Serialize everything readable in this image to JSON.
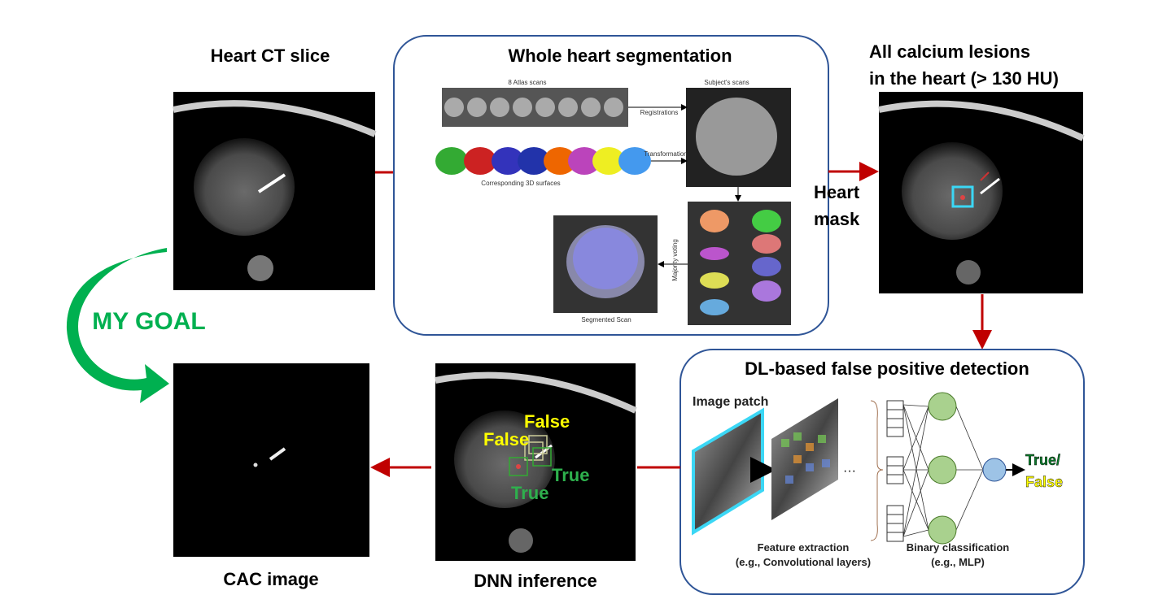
{
  "heart_ct": {
    "title": "Heart CT slice"
  },
  "segmentation": {
    "title": "Whole heart segmentation",
    "atlas_label": "8 Atlas scans",
    "subject_label": "Subject's scans",
    "registrations": "Registrations",
    "transformation": "Transformation",
    "surfaces_label": "Corresponding 3D surfaces",
    "majority_voting": "Majority voting",
    "segmented_label": "Segmented Scan"
  },
  "calcium": {
    "title_lines": [
      "All calcium lesions",
      "in the heart (> 130 HU)"
    ],
    "mask_label_lines": [
      "Heart",
      "mask"
    ]
  },
  "goal": "MY GOAL",
  "fp_detection": {
    "title": "DL-based false positive detection",
    "image_patch": "Image patch",
    "ellipsis": "···",
    "feature_extraction": [
      "Feature extraction",
      "(e.g., Convolutional layers)"
    ],
    "binary_classification": [
      "Binary classification",
      "(e.g., MLP)"
    ],
    "output": [
      "True/",
      "False"
    ]
  },
  "dnn": {
    "title": "DNN inference",
    "labels": [
      "False",
      "False",
      "True",
      "True"
    ]
  },
  "cac": {
    "title": "CAC image"
  }
}
